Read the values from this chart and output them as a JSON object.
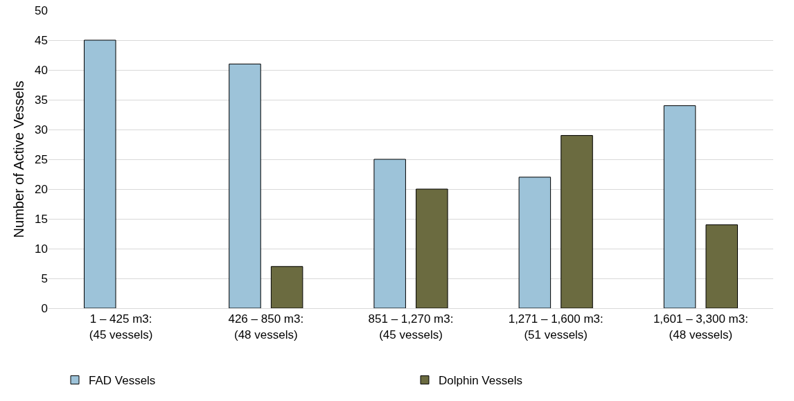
{
  "chart_data": {
    "type": "bar",
    "ylabel": "Number of Active Vessels",
    "categories": [
      "1 – 425 m3:\n(45 vessels)",
      "426 – 850 m3:\n(48 vessels)",
      "851 – 1,270 m3:\n(45 vessels)",
      "1,271 – 1,600 m3:\n(51 vessels)",
      "1,601 – 3,300 m3:\n(48 vessels)"
    ],
    "series": [
      {
        "name": "FAD Vessels",
        "color": "#9dc3d9",
        "values": [
          45,
          41,
          25,
          22,
          34
        ]
      },
      {
        "name": "Dolphin Vessels",
        "color": "#6b6b40",
        "values": [
          null,
          7,
          20,
          29,
          14
        ]
      }
    ],
    "ylim": [
      0,
      50
    ],
    "yticks": [
      0,
      5,
      10,
      15,
      20,
      25,
      30,
      35,
      40,
      45,
      50
    ],
    "grid": "y",
    "legend": "bottom"
  }
}
